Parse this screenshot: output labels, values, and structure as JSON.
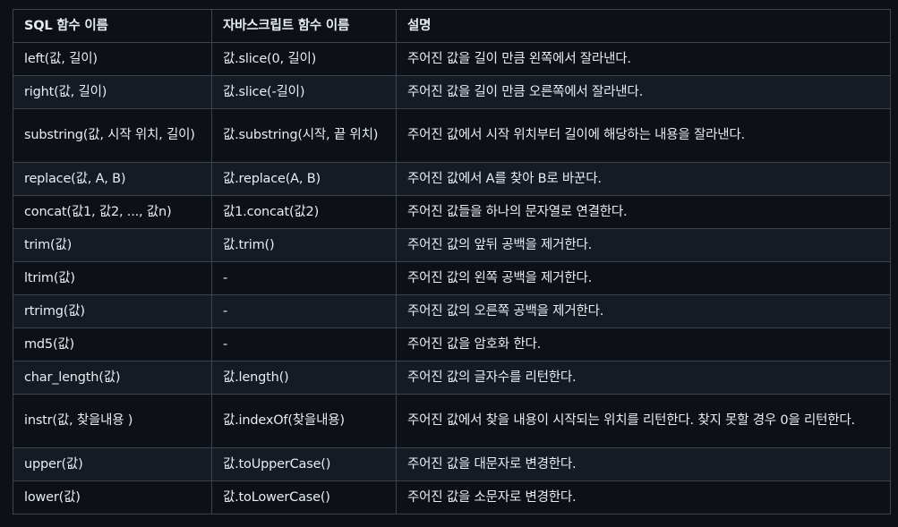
{
  "table": {
    "headers": [
      "SQL 함수 이름",
      "자바스크립트 함수 이름",
      "설명"
    ],
    "rows": [
      [
        "left(값, 길이)",
        "값.slice(0, 길이)",
        "주어진 값을 길이 만큼 왼쪽에서 잘라낸다."
      ],
      [
        "right(값, 길이)",
        "값.slice(-길이)",
        "주어진 값을 길이 만큼 오른쪽에서 잘라낸다."
      ],
      [
        "substring(값, 시작 위치, 길이)",
        "값.substring(시작, 끝 위치)",
        "주어진 값에서 시작 위치부터 길이에 해당하는 내용을 잘라낸다."
      ],
      [
        "replace(값, A, B)",
        "값.replace(A, B)",
        "주어진 값에서 A를 찾아 B로 바꾼다."
      ],
      [
        "concat(값1, 값2, ..., 값n)",
        "값1.concat(값2)",
        "주어진 값들을 하나의 문자열로 연결한다."
      ],
      [
        "trim(값)",
        "값.trim()",
        "주어진 값의 앞뒤 공백을 제거한다."
      ],
      [
        "ltrim(값)",
        "-",
        "주어진 값의 왼쪽 공백을 제거한다."
      ],
      [
        "rtrimg(값)",
        "-",
        "주어진 값의 오른쪽 공백을 제거한다."
      ],
      [
        "md5(값)",
        "-",
        "주어진 값을 암호화 한다."
      ],
      [
        "char_length(값)",
        "값.length()",
        "주어진 값의 글자수를 리턴한다."
      ],
      [
        "instr(값, 찾을내용 )",
        "값.indexOf(찾을내용)",
        "주어진 값에서 찾을 내용이 시작되는 위치를 리턴한다. 찾지 못할 경우 0을 리턴한다."
      ],
      [
        "upper(값)",
        "값.toUpperCase()",
        "주어진 값을 대문자로 변경한다."
      ],
      [
        "lower(값)",
        "값.toLowerCase()",
        "주어진 값을 소문자로 변경한다."
      ]
    ]
  }
}
